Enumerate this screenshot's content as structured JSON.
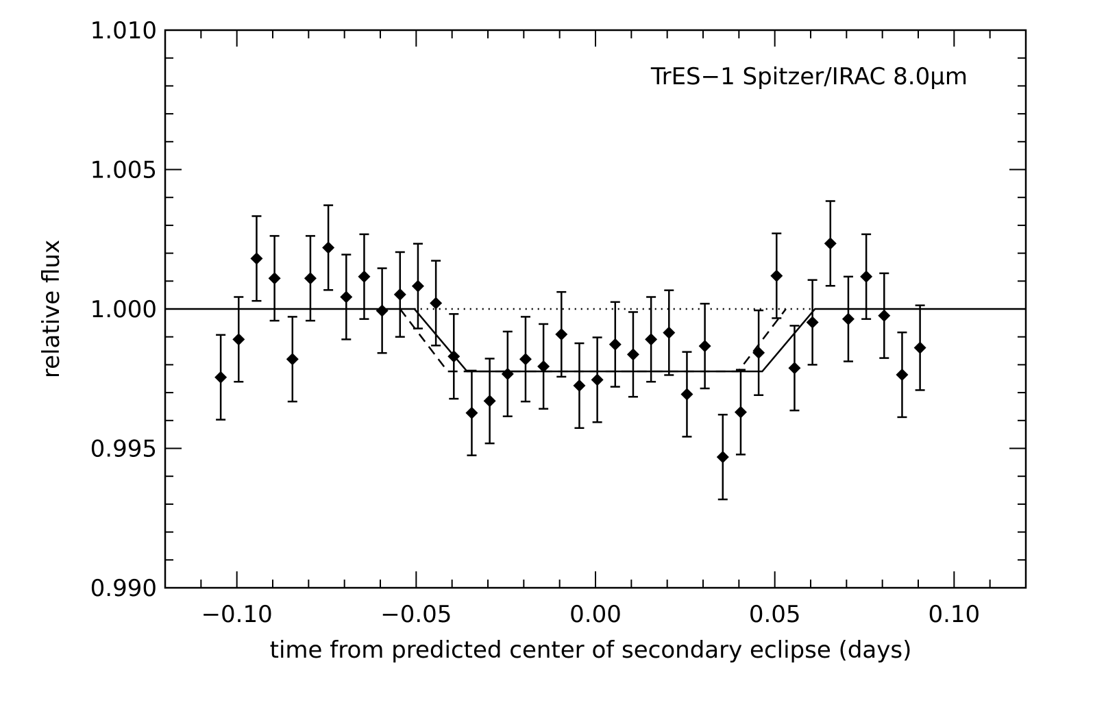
{
  "chart_data": {
    "type": "scatter",
    "annotation": "TrES−1 Spitzer/IRAC 8.0μm",
    "xlabel": "time from predicted center of secondary eclipse (days)",
    "ylabel": "relative flux",
    "xlim": [
      -0.12,
      0.12
    ],
    "ylim": [
      0.99,
      1.01
    ],
    "x_ticks": [
      -0.1,
      -0.05,
      0.0,
      0.05,
      0.1
    ],
    "x_tick_labels": [
      "−0.10",
      "−0.05",
      "0.00",
      "0.05",
      "0.10"
    ],
    "y_ticks": [
      0.99,
      0.995,
      1.0,
      1.005,
      1.01
    ],
    "y_tick_labels": [
      "0.990",
      "0.995",
      "1.000",
      "1.005",
      "1.010"
    ],
    "grid": false,
    "points": [
      {
        "x": -0.1045,
        "y": 0.99755,
        "err": 0.00152
      },
      {
        "x": -0.0995,
        "y": 0.99891,
        "err": 0.00152
      },
      {
        "x": -0.0945,
        "y": 1.00181,
        "err": 0.00152
      },
      {
        "x": -0.0895,
        "y": 1.0011,
        "err": 0.00152
      },
      {
        "x": -0.0845,
        "y": 0.9982,
        "err": 0.00152
      },
      {
        "x": -0.0795,
        "y": 1.0011,
        "err": 0.00152
      },
      {
        "x": -0.0745,
        "y": 1.0022,
        "err": 0.00152
      },
      {
        "x": -0.0695,
        "y": 1.00043,
        "err": 0.00152
      },
      {
        "x": -0.0645,
        "y": 1.00116,
        "err": 0.00152
      },
      {
        "x": -0.0595,
        "y": 0.99994,
        "err": 0.00152
      },
      {
        "x": -0.0545,
        "y": 1.00052,
        "err": 0.00152
      },
      {
        "x": -0.0495,
        "y": 1.00082,
        "err": 0.00152
      },
      {
        "x": -0.0445,
        "y": 1.00021,
        "err": 0.00152
      },
      {
        "x": -0.0395,
        "y": 0.9983,
        "err": 0.00152
      },
      {
        "x": -0.0345,
        "y": 0.99627,
        "err": 0.00152
      },
      {
        "x": -0.0295,
        "y": 0.9967,
        "err": 0.00152
      },
      {
        "x": -0.0245,
        "y": 0.99767,
        "err": 0.00152
      },
      {
        "x": -0.0195,
        "y": 0.9982,
        "err": 0.00152
      },
      {
        "x": -0.0145,
        "y": 0.99794,
        "err": 0.00152
      },
      {
        "x": -0.0095,
        "y": 0.99909,
        "err": 0.00152
      },
      {
        "x": -0.0045,
        "y": 0.99725,
        "err": 0.00152
      },
      {
        "x": 0.0005,
        "y": 0.99746,
        "err": 0.00152
      },
      {
        "x": 0.0055,
        "y": 0.99873,
        "err": 0.00152
      },
      {
        "x": 0.0105,
        "y": 0.99837,
        "err": 0.00152
      },
      {
        "x": 0.0155,
        "y": 0.99891,
        "err": 0.00152
      },
      {
        "x": 0.0205,
        "y": 0.99915,
        "err": 0.00152
      },
      {
        "x": 0.0255,
        "y": 0.99694,
        "err": 0.00152
      },
      {
        "x": 0.0305,
        "y": 0.99867,
        "err": 0.00152
      },
      {
        "x": 0.0355,
        "y": 0.99469,
        "err": 0.00152
      },
      {
        "x": 0.0405,
        "y": 0.9963,
        "err": 0.00152
      },
      {
        "x": 0.0455,
        "y": 0.99843,
        "err": 0.00152
      },
      {
        "x": 0.0505,
        "y": 1.00119,
        "err": 0.00152
      },
      {
        "x": 0.0555,
        "y": 0.99788,
        "err": 0.00152
      },
      {
        "x": 0.0605,
        "y": 0.99952,
        "err": 0.00152
      },
      {
        "x": 0.0655,
        "y": 1.00235,
        "err": 0.00152
      },
      {
        "x": 0.0705,
        "y": 0.99964,
        "err": 0.00152
      },
      {
        "x": 0.0755,
        "y": 1.00116,
        "err": 0.00152
      },
      {
        "x": 0.0805,
        "y": 0.99976,
        "err": 0.00152
      },
      {
        "x": 0.0855,
        "y": 0.99764,
        "err": 0.00152
      },
      {
        "x": 0.0905,
        "y": 0.99861,
        "err": 0.00152
      }
    ],
    "model_solid": {
      "style": "solid",
      "x": [
        -0.12,
        -0.0505,
        -0.0358,
        0.0465,
        0.0612,
        0.12
      ],
      "y": [
        1.0,
        1.0,
        0.99776,
        0.99776,
        1.0,
        1.0
      ]
    },
    "model_dashed": {
      "style": "dashed",
      "x": [
        -0.0545,
        -0.0412,
        0.0398,
        0.0531
      ],
      "y": [
        1.0,
        0.99776,
        0.99776,
        1.0
      ]
    },
    "reference_dotted": {
      "style": "dotted",
      "x": [
        -0.0505,
        0.0612
      ],
      "y": [
        1.0,
        1.0
      ]
    },
    "colors": {
      "foreground": "#000000",
      "background": "#ffffff"
    }
  }
}
